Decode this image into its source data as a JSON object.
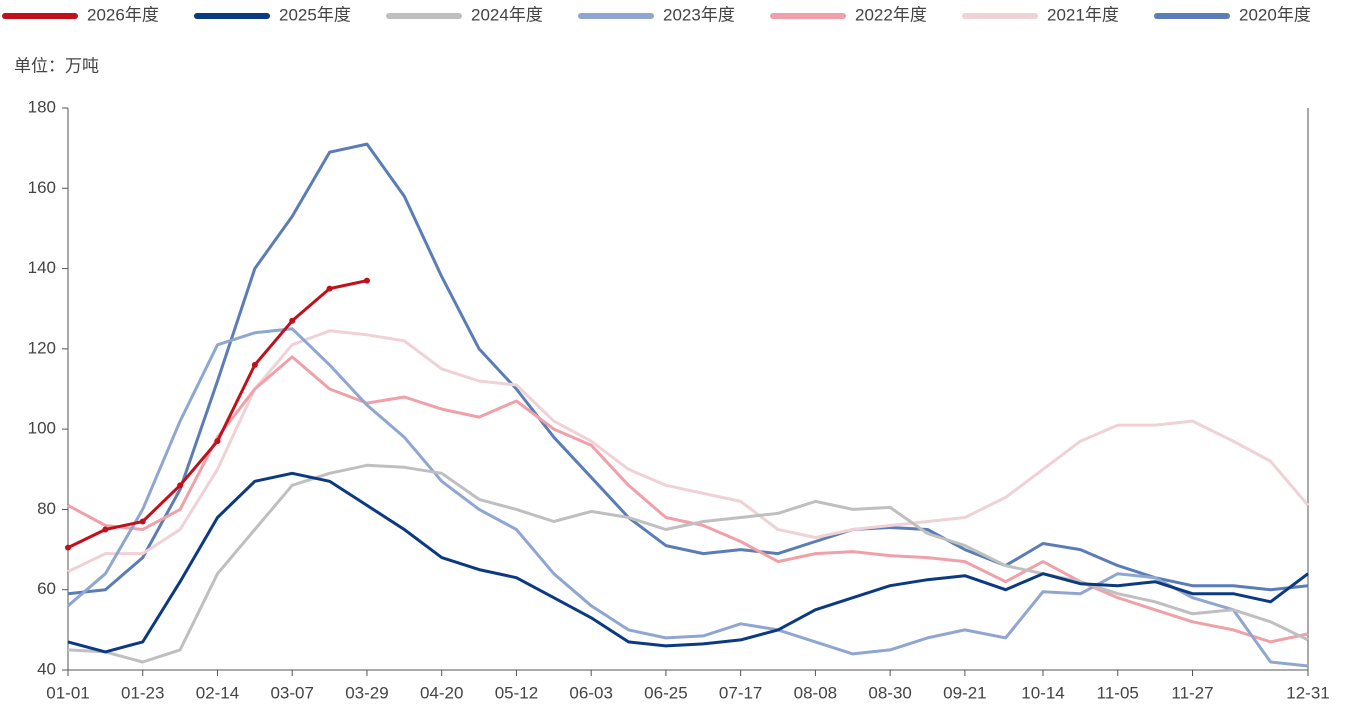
{
  "chart_data": {
    "type": "line",
    "unit_label": "单位：万吨",
    "x": [
      "01-01",
      "01-12",
      "01-23",
      "02-03",
      "02-14",
      "02-25",
      "03-07",
      "03-18",
      "03-29",
      "04-09",
      "04-20",
      "05-01",
      "05-12",
      "05-23",
      "06-03",
      "06-14",
      "06-25",
      "07-06",
      "07-17",
      "07-28",
      "08-08",
      "08-19",
      "08-30",
      "09-10",
      "09-21",
      "10-03",
      "10-14",
      "10-25",
      "11-05",
      "11-16",
      "11-27",
      "12-09",
      "12-20",
      "12-31"
    ],
    "xlim": [
      "01-01",
      "12-31"
    ],
    "xticks": [
      "01-01",
      "01-23",
      "02-14",
      "03-07",
      "03-29",
      "04-20",
      "05-12",
      "06-03",
      "06-25",
      "07-17",
      "08-08",
      "08-30",
      "09-21",
      "10-14",
      "11-05",
      "11-27",
      "12-31"
    ],
    "ylim": [
      40,
      180
    ],
    "yticks": [
      40,
      60,
      80,
      100,
      120,
      140,
      160,
      180
    ],
    "legend": "top",
    "series": [
      {
        "name": "2026年度",
        "color": "#c0101c",
        "markers": true,
        "values": [
          70.5,
          75,
          77,
          86,
          97,
          116,
          127,
          135,
          137,
          null,
          null,
          null,
          null,
          null,
          null,
          null,
          null,
          null,
          null,
          null,
          null,
          null,
          null,
          null,
          null,
          null,
          null,
          null,
          null,
          null,
          null,
          null,
          null,
          null
        ]
      },
      {
        "name": "2025年度",
        "color": "#0b3a82",
        "values": [
          47,
          44.5,
          47,
          62,
          78,
          87,
          89,
          87,
          81,
          75,
          68,
          65,
          63,
          58,
          53,
          47,
          46,
          46.5,
          47.5,
          50,
          55,
          58,
          61,
          62.5,
          63.5,
          60,
          64,
          61.5,
          61,
          62,
          59,
          59,
          57,
          64
        ]
      },
      {
        "name": "2024年度",
        "color": "#bfbfbf",
        "values": [
          45,
          44.5,
          42,
          45,
          64,
          75,
          86,
          89,
          91,
          90.5,
          89,
          82.5,
          80,
          77,
          79.5,
          78,
          75,
          77,
          78,
          79,
          82,
          80,
          80.5,
          74,
          71,
          66,
          64,
          62,
          59,
          57,
          54,
          55,
          52,
          47.5
        ]
      },
      {
        "name": "2023年度",
        "color": "#8fa6d0",
        "values": [
          56,
          64,
          80,
          102,
          121,
          124,
          125,
          116,
          106,
          98,
          87,
          80,
          75,
          64,
          56,
          50,
          48,
          48.5,
          51.5,
          50,
          47,
          44,
          45,
          48,
          50,
          48,
          59.5,
          59,
          64,
          63,
          58,
          55,
          42,
          41
        ]
      },
      {
        "name": "2022年度",
        "color": "#f0a0a8",
        "values": [
          81,
          76,
          75,
          80,
          98,
          110,
          118,
          110,
          106.5,
          108,
          105,
          103,
          107,
          100,
          96,
          86,
          78,
          76,
          72,
          67,
          69,
          69.5,
          68.5,
          68,
          67,
          62,
          67,
          62,
          58,
          55,
          52,
          50,
          47,
          49
        ]
      },
      {
        "name": "2021年度",
        "color": "#efd2d5",
        "values": [
          64.5,
          69,
          69,
          75,
          90,
          110,
          121,
          124.5,
          123.5,
          122,
          115,
          112,
          111,
          102,
          97,
          90,
          86,
          84,
          82,
          75,
          73,
          75,
          76,
          77,
          78,
          83,
          90,
          97,
          101,
          101,
          102,
          97,
          92,
          81
        ]
      },
      {
        "name": "2020年度",
        "color": "#5a7db5",
        "values": [
          59,
          60,
          68,
          85,
          112,
          140,
          153,
          169,
          171,
          158,
          138,
          120,
          110,
          98,
          88,
          78,
          71,
          69,
          70,
          69,
          72,
          75,
          75.5,
          75,
          70,
          66,
          71.5,
          70,
          66,
          63,
          61,
          61,
          60,
          61
        ]
      }
    ]
  }
}
